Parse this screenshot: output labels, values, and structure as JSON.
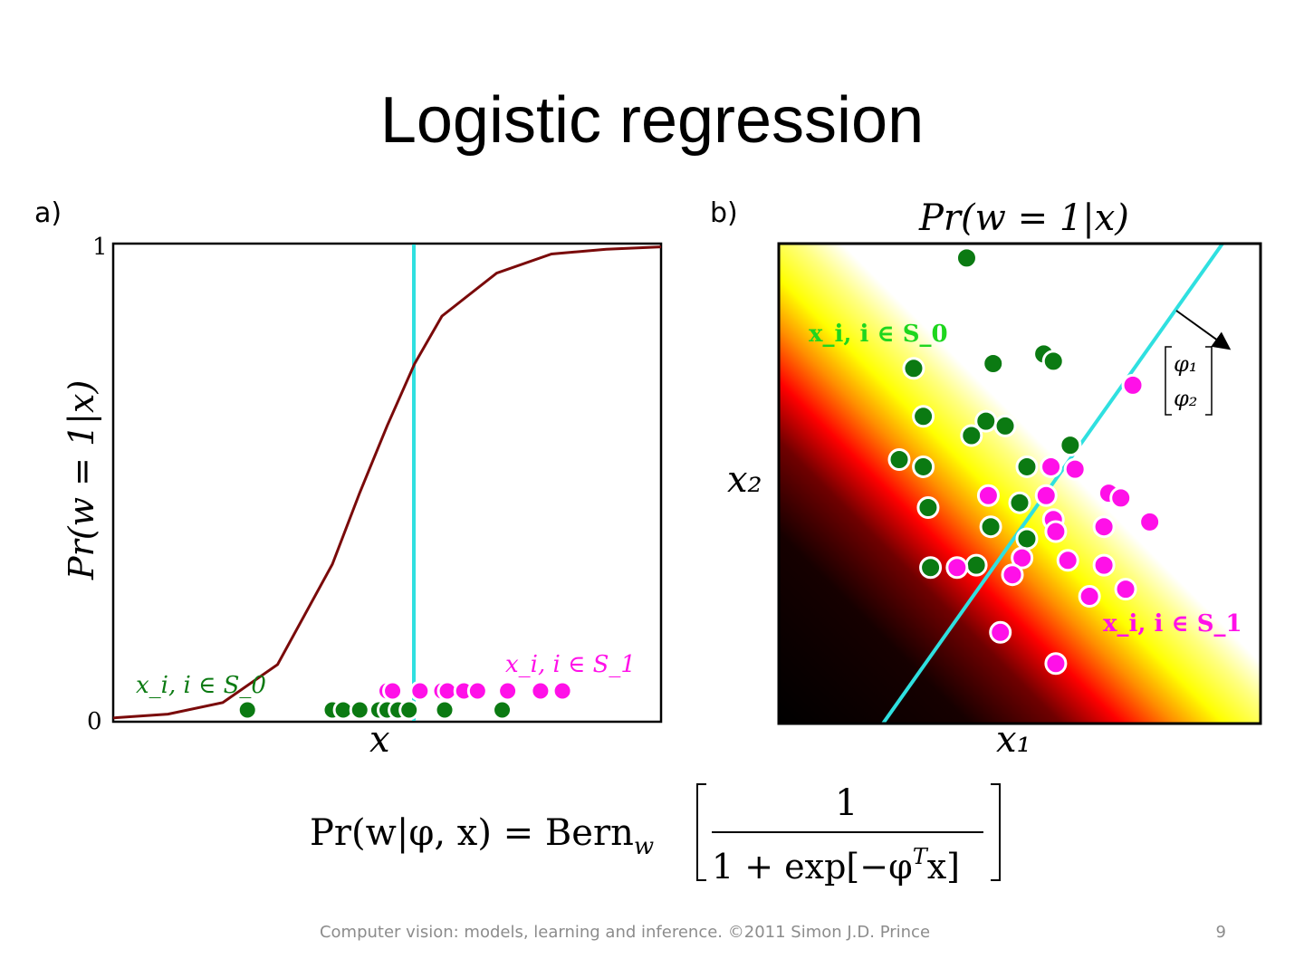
{
  "slide": {
    "title": "Logistic regression",
    "footer": "Computer vision: models, learning and inference.  ©2011 Simon J.D. Prince",
    "page_number": "9",
    "formula": {
      "lhs": "Pr(w|φ, x) = Bern",
      "sub": "w",
      "numerator": "1",
      "denominator": "1 + exp[−φ",
      "denominator_sup": "T",
      "denominator_tail": "x]"
    }
  },
  "colors": {
    "class0": "#0b7a12",
    "class1": "#ff10e8",
    "boundary": "#2fe0e0",
    "sigmoid": "#7a0a0a"
  },
  "chart_data": [
    {
      "type": "line",
      "panel_label": "a)",
      "xlabel": "x",
      "ylabel": "Pr(w = 1|x)",
      "yticks": [
        "0",
        "1"
      ],
      "ylim": [
        0,
        1
      ],
      "xlim": [
        0,
        1
      ],
      "series": [
        {
          "kind": "sigmoid",
          "x": [
            0.0,
            0.1,
            0.2,
            0.3,
            0.4,
            0.45,
            0.5,
            0.55,
            0.6,
            0.7,
            0.8,
            0.9,
            1.0
          ],
          "y": [
            0.008,
            0.016,
            0.04,
            0.12,
            0.33,
            0.48,
            0.62,
            0.75,
            0.85,
            0.94,
            0.98,
            0.99,
            0.995
          ]
        }
      ],
      "decision_boundary_x": 0.55,
      "class0_label": "x_i, i ∈ S_0",
      "class1_label": "x_i, i ∈ S_1",
      "class0_x": [
        0.245,
        0.4,
        0.42,
        0.45,
        0.485,
        0.5,
        0.52,
        0.54,
        0.605,
        0.71
      ],
      "class1_x": [
        0.5,
        0.51,
        0.56,
        0.6,
        0.61,
        0.64,
        0.665,
        0.72,
        0.78,
        0.82
      ]
    },
    {
      "type": "scatter",
      "panel_label": "b)",
      "title": "Pr(w = 1|x)",
      "xlabel": "x₁",
      "ylabel": "x₂",
      "vector_label_1": "φ₁",
      "vector_label_2": "φ₂",
      "class0_label": "x_i, i ∈ S_0",
      "class1_label": "x_i, i ∈ S_1",
      "class0_points": [
        [
          0.39,
          0.97
        ],
        [
          0.28,
          0.74
        ],
        [
          0.445,
          0.75
        ],
        [
          0.55,
          0.77
        ],
        [
          0.57,
          0.755
        ],
        [
          0.3,
          0.64
        ],
        [
          0.43,
          0.63
        ],
        [
          0.47,
          0.62
        ],
        [
          0.4,
          0.6
        ],
        [
          0.25,
          0.55
        ],
        [
          0.3,
          0.535
        ],
        [
          0.515,
          0.535
        ],
        [
          0.605,
          0.58
        ],
        [
          0.31,
          0.45
        ],
        [
          0.5,
          0.46
        ],
        [
          0.44,
          0.41
        ],
        [
          0.515,
          0.385
        ],
        [
          0.315,
          0.325
        ],
        [
          0.41,
          0.33
        ]
      ],
      "class1_points": [
        [
          0.735,
          0.705
        ],
        [
          0.565,
          0.535
        ],
        [
          0.615,
          0.53
        ],
        [
          0.435,
          0.475
        ],
        [
          0.555,
          0.475
        ],
        [
          0.685,
          0.48
        ],
        [
          0.71,
          0.47
        ],
        [
          0.57,
          0.425
        ],
        [
          0.575,
          0.4
        ],
        [
          0.675,
          0.41
        ],
        [
          0.77,
          0.42
        ],
        [
          0.505,
          0.345
        ],
        [
          0.6,
          0.34
        ],
        [
          0.37,
          0.325
        ],
        [
          0.485,
          0.31
        ],
        [
          0.675,
          0.33
        ],
        [
          0.645,
          0.265
        ],
        [
          0.72,
          0.28
        ],
        [
          0.46,
          0.19
        ],
        [
          0.575,
          0.125
        ]
      ]
    }
  ]
}
